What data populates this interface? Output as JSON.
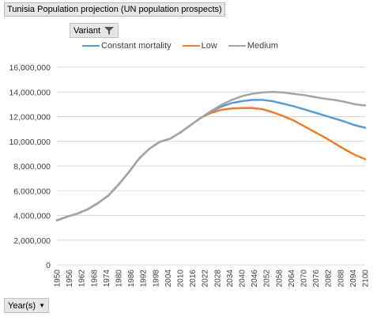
{
  "title": "Tunisia Population projection (UN population prospects)",
  "filter_buttons": {
    "variant_label": "Variant",
    "year_label": "Year(s)"
  },
  "icons": {
    "variant_filter": "filter-funnel-icon",
    "year_dropdown": "chevron-down-icon"
  },
  "colors": {
    "constant_mortality": "#5b9bd5",
    "low": "#ed7d31",
    "medium": "#a5a5a5",
    "gridline": "#d9d9d9"
  },
  "chart_data": {
    "type": "line",
    "title": "",
    "xlabel": "Year(s)",
    "ylabel": "",
    "ylim": [
      0,
      16000000
    ],
    "y_ticks": [
      0,
      2000000,
      4000000,
      6000000,
      8000000,
      10000000,
      12000000,
      14000000,
      16000000
    ],
    "y_tick_labels": [
      "0",
      "2,000,000",
      "4,000,000",
      "6,000,000",
      "8,000,000",
      "10,000,000",
      "12,000,000",
      "14,000,000",
      "16,000,000"
    ],
    "x_tick_labels": [
      "1950",
      "1956",
      "1962",
      "1968",
      "1974",
      "1980",
      "1986",
      "1992",
      "1998",
      "2004",
      "2010",
      "2016",
      "2022",
      "2028",
      "2034",
      "2040",
      "2046",
      "2052",
      "2058",
      "2064",
      "2070",
      "2076",
      "2082",
      "2088",
      "2094",
      "2100"
    ],
    "grid": true,
    "legend_position": "top",
    "x": [
      1950,
      1955,
      1960,
      1965,
      1970,
      1975,
      1980,
      1985,
      1990,
      1995,
      2000,
      2005,
      2010,
      2015,
      2020,
      2025,
      2030,
      2035,
      2040,
      2045,
      2050,
      2055,
      2060,
      2065,
      2070,
      2075,
      2080,
      2085,
      2090,
      2095,
      2100
    ],
    "series": [
      {
        "name": "Constant mortality",
        "values": [
          3600000,
          3900000,
          4150000,
          4500000,
          5000000,
          5600000,
          6500000,
          7500000,
          8600000,
          9400000,
          9950000,
          10200000,
          10700000,
          11300000,
          11900000,
          12400000,
          12800000,
          13100000,
          13250000,
          13350000,
          13350000,
          13250000,
          13050000,
          12850000,
          12600000,
          12350000,
          12100000,
          11850000,
          11600000,
          11300000,
          11100000
        ]
      },
      {
        "name": "Low",
        "values": [
          3600000,
          3900000,
          4150000,
          4500000,
          5000000,
          5600000,
          6500000,
          7500000,
          8600000,
          9400000,
          9950000,
          10200000,
          10700000,
          11300000,
          11900000,
          12300000,
          12550000,
          12650000,
          12700000,
          12700000,
          12600000,
          12350000,
          12050000,
          11700000,
          11250000,
          10800000,
          10350000,
          9850000,
          9350000,
          8900000,
          8550000
        ]
      },
      {
        "name": "Medium",
        "values": [
          3600000,
          3900000,
          4150000,
          4500000,
          5000000,
          5600000,
          6500000,
          7500000,
          8600000,
          9400000,
          9950000,
          10200000,
          10700000,
          11300000,
          11900000,
          12450000,
          12950000,
          13350000,
          13650000,
          13850000,
          13950000,
          14000000,
          13950000,
          13850000,
          13750000,
          13600000,
          13450000,
          13350000,
          13200000,
          13000000,
          12900000
        ]
      }
    ]
  }
}
